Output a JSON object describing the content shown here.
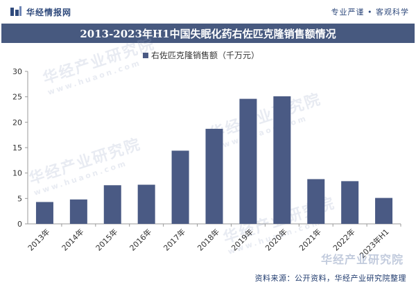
{
  "header": {
    "brand_name": "华经情报网",
    "tagline": "专业严谨 • 客观科学"
  },
  "title": "2013-2023年H1中国失眠化药右佐匹克隆销售额情况",
  "source": "资料来源：公开资料，华经产业研究院整理",
  "watermarks": {
    "main": "华经产业研究院",
    "sub": "www.huaon.com",
    "brand": "华经产业研究院"
  },
  "colors": {
    "bar": "#4a5a84",
    "title_bg": "#47597f",
    "text": "#2f4a7c"
  },
  "chart_data": {
    "type": "bar",
    "categories": [
      "2013年",
      "2014年",
      "2015年",
      "2016年",
      "2017年",
      "2018年",
      "2019年",
      "2020年",
      "2021年",
      "2022年",
      "2023年H1"
    ],
    "series": [
      {
        "name": "右佐匹克隆销售额（千万元）",
        "values": [
          4.3,
          4.8,
          7.6,
          7.7,
          14.4,
          18.7,
          24.6,
          25.1,
          8.8,
          8.4,
          5.1
        ]
      }
    ],
    "yticks": [
      0,
      5,
      10,
      15,
      20,
      25,
      30
    ],
    "ylim": [
      0,
      30
    ],
    "legend_position": "top-left",
    "grid": false
  }
}
